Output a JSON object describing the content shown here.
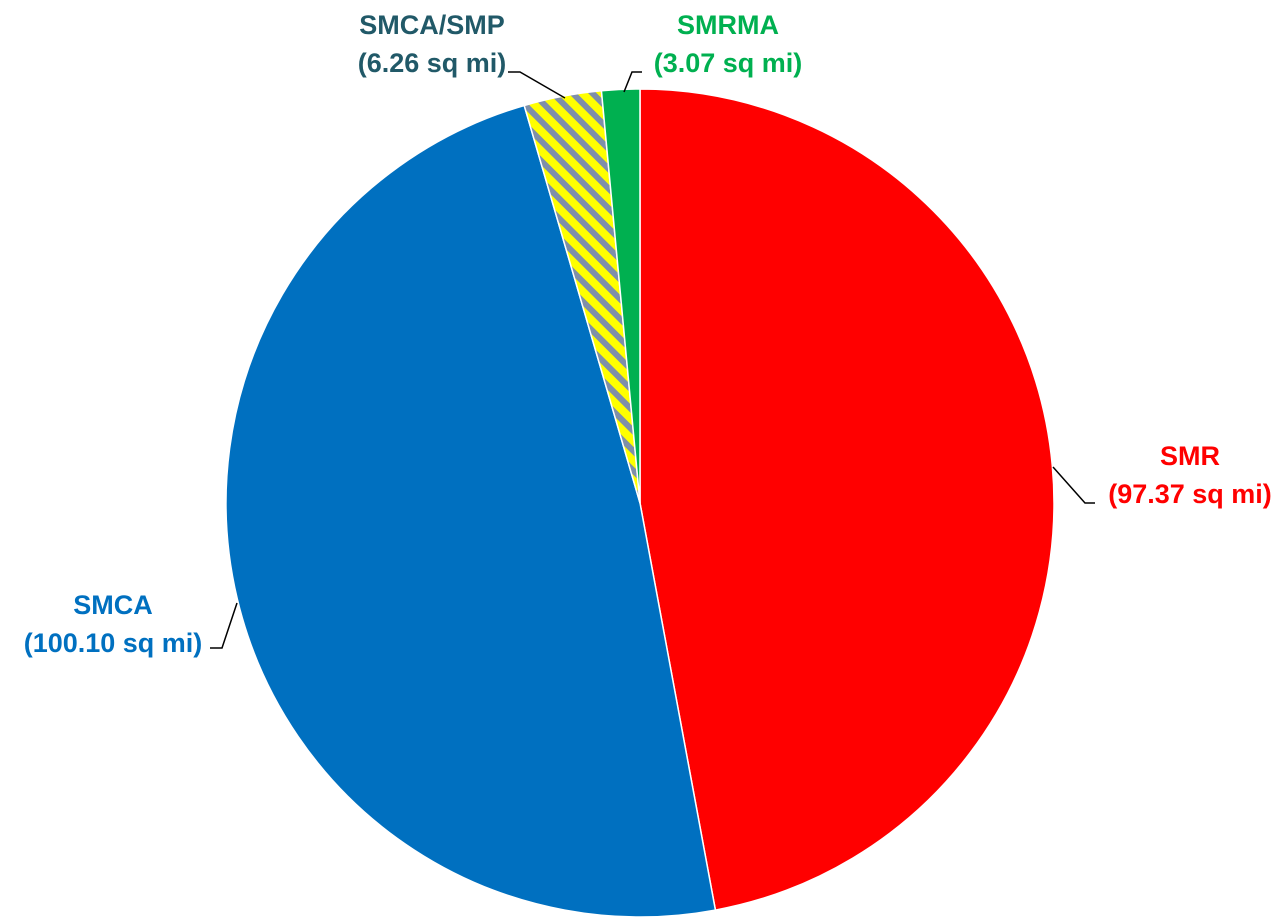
{
  "chart_data": {
    "type": "pie",
    "title": "",
    "unit": "sq mi",
    "start": "top",
    "direction": "clockwise",
    "slices": [
      {
        "name": "SMR",
        "value": 97.37,
        "label_value": "(97.37 sq mi)",
        "color": "#FF0000",
        "pattern": "solid"
      },
      {
        "name": "SMCA",
        "value": 100.1,
        "label_value": "(100.10 sq mi)",
        "color": "#0070C0",
        "pattern": "solid"
      },
      {
        "name": "SMCA/SMP",
        "value": 6.26,
        "label_value": "(6.26 sq mi)",
        "color": "#FFFF00",
        "pattern_color": "#7F8FA9",
        "pattern": "diagonal-stripes"
      },
      {
        "name": "SMRMA",
        "value": 3.07,
        "label_value": "(3.07 sq mi)",
        "color": "#00B050",
        "pattern": "solid"
      }
    ],
    "label_colors": {
      "SMR": "#FF0000",
      "SMCA": "#0070C0",
      "SMCA/SMP": "#215968",
      "SMRMA": "#00B050"
    },
    "legend": "none"
  }
}
